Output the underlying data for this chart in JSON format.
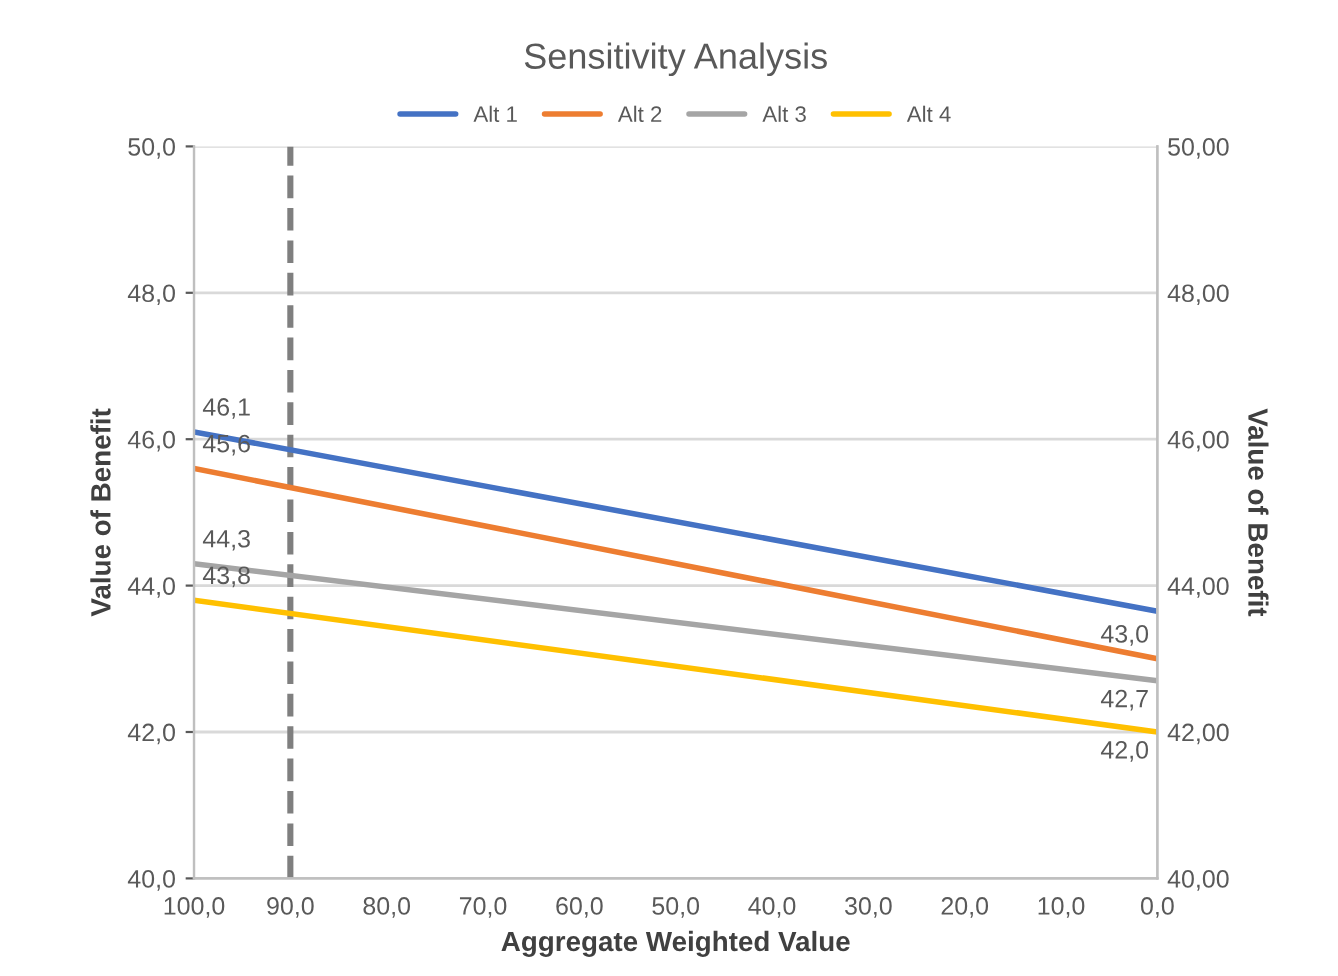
{
  "chart_data": {
    "type": "line",
    "title": "Sensitivity Analysis",
    "xlabel": "Aggregate Weighted Value",
    "ylabel": "Value of Benefit",
    "y2label": "Value of Benefit",
    "x": [
      100,
      0
    ],
    "series": [
      {
        "name": "Alt 1",
        "color": "#4472c4",
        "values": [
          46.1,
          43.65
        ],
        "value_labels": [
          "46,1",
          null
        ]
      },
      {
        "name": "Alt 2",
        "color": "#ed7d31",
        "values": [
          45.6,
          43.0
        ],
        "value_labels": [
          "45,6",
          "43,0"
        ]
      },
      {
        "name": "Alt 3",
        "color": "#a5a5a5",
        "values": [
          44.3,
          42.7
        ],
        "value_labels": [
          "44,3",
          "42,7"
        ]
      },
      {
        "name": "Alt 4",
        "color": "#ffc000",
        "values": [
          43.8,
          42.0
        ],
        "value_labels": [
          "43,8",
          "42,0"
        ]
      }
    ],
    "xlim": [
      100,
      0
    ],
    "xticks": [
      {
        "value": 100,
        "label": "100,0"
      },
      {
        "value": 90,
        "label": "90,0"
      },
      {
        "value": 80,
        "label": "80,0"
      },
      {
        "value": 70,
        "label": "70,0"
      },
      {
        "value": 60,
        "label": "60,0"
      },
      {
        "value": 50,
        "label": "50,0"
      },
      {
        "value": 40,
        "label": "40,0"
      },
      {
        "value": 30,
        "label": "30,0"
      },
      {
        "value": 20,
        "label": "20,0"
      },
      {
        "value": 10,
        "label": "10,0"
      },
      {
        "value": 0,
        "label": "0,0"
      }
    ],
    "ylim": [
      40,
      50
    ],
    "yticks": [
      {
        "value": 40,
        "label": "40,0"
      },
      {
        "value": 42,
        "label": "42,0"
      },
      {
        "value": 44,
        "label": "44,0"
      },
      {
        "value": 46,
        "label": "46,0"
      },
      {
        "value": 48,
        "label": "48,0"
      },
      {
        "value": 50,
        "label": "50,0"
      }
    ],
    "y2lim": [
      40,
      50
    ],
    "y2ticks": [
      {
        "value": 40,
        "label": "40,00"
      },
      {
        "value": 42,
        "label": "42,00"
      },
      {
        "value": 44,
        "label": "44,00"
      },
      {
        "value": 46,
        "label": "46,00"
      },
      {
        "value": 48,
        "label": "48,00"
      },
      {
        "value": 50,
        "label": "50,00"
      }
    ],
    "ref_lines": [
      {
        "axis": "x",
        "value": 90,
        "color": "#7f7f7f",
        "line_style": "dashed"
      }
    ],
    "grid": "y",
    "legend": "top",
    "marker": "none",
    "line_style": "solid"
  }
}
